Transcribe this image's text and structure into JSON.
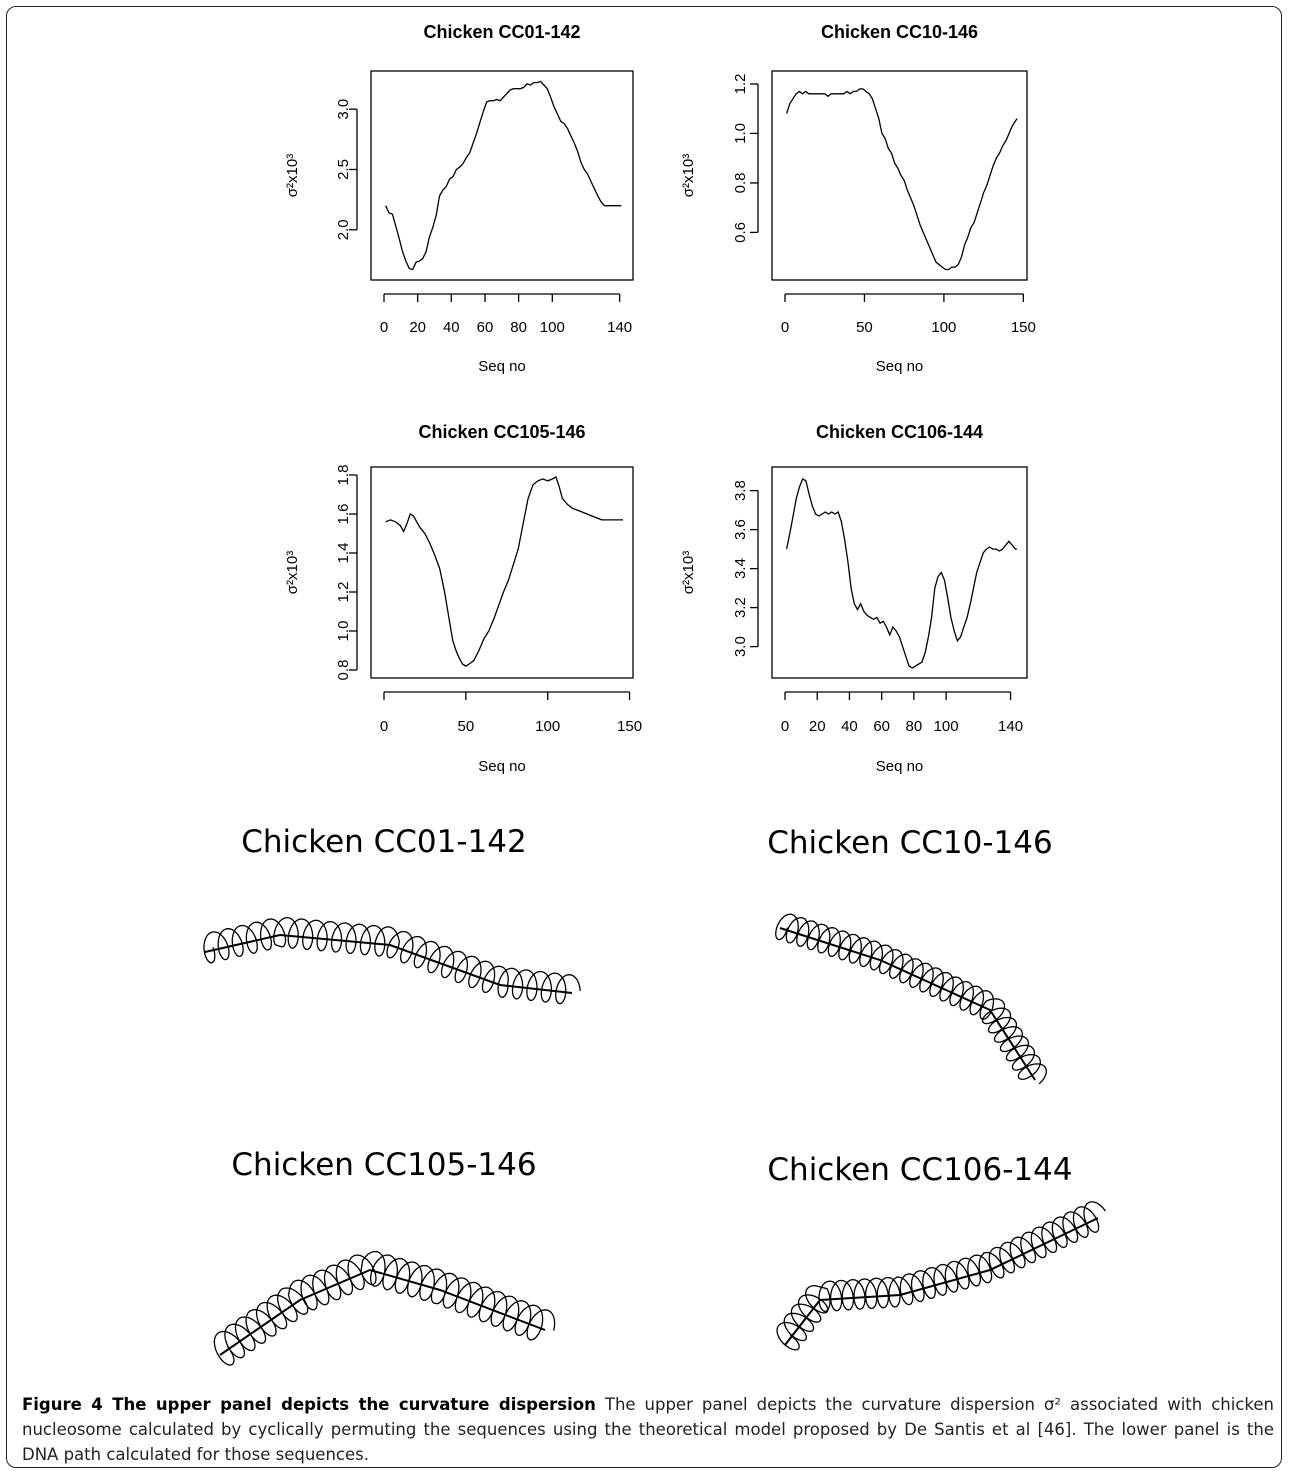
{
  "chart_data": [
    {
      "type": "line",
      "title": "Chicken  CC01-142",
      "xlabel": "Seq no",
      "ylabel": "σ²x10³",
      "xlim": [
        0,
        142
      ],
      "ylim": [
        1.65,
        3.25
      ],
      "xticks": [
        0,
        20,
        40,
        60,
        80,
        100,
        140
      ],
      "yticks": [
        2.0,
        2.5,
        3.0
      ],
      "ytick_labels": [
        "2.0",
        "2.5",
        "3.0"
      ],
      "x": [
        1,
        3,
        5,
        7,
        9,
        11,
        13,
        15,
        17,
        19,
        21,
        23,
        25,
        27,
        29,
        31,
        33,
        35,
        37,
        39,
        41,
        43,
        45,
        47,
        49,
        51,
        53,
        55,
        57,
        59,
        61,
        63,
        65,
        67,
        69,
        71,
        73,
        75,
        77,
        79,
        81,
        83,
        85,
        87,
        89,
        91,
        93,
        95,
        97,
        99,
        101,
        103,
        105,
        107,
        109,
        111,
        113,
        115,
        117,
        119,
        121,
        123,
        125,
        127,
        129,
        131,
        133,
        135,
        137,
        139,
        141
      ],
      "values": [
        2.2,
        2.14,
        2.13,
        2.03,
        1.93,
        1.82,
        1.74,
        1.68,
        1.67,
        1.73,
        1.74,
        1.76,
        1.82,
        1.94,
        2.02,
        2.12,
        2.28,
        2.33,
        2.36,
        2.42,
        2.44,
        2.5,
        2.52,
        2.55,
        2.6,
        2.64,
        2.72,
        2.8,
        2.89,
        2.98,
        3.06,
        3.07,
        3.07,
        3.08,
        3.07,
        3.1,
        3.13,
        3.16,
        3.17,
        3.17,
        3.17,
        3.18,
        3.21,
        3.2,
        3.22,
        3.22,
        3.23,
        3.2,
        3.17,
        3.1,
        3.02,
        2.96,
        2.9,
        2.88,
        2.84,
        2.78,
        2.72,
        2.65,
        2.56,
        2.5,
        2.46,
        2.4,
        2.34,
        2.28,
        2.23,
        2.2,
        2.2,
        2.2,
        2.2,
        2.2,
        2.2
      ]
    },
    {
      "type": "line",
      "title": "Chicken  CC10-146",
      "xlabel": "Seq no",
      "ylabel": "σ²x10³",
      "xlim": [
        0,
        146
      ],
      "ylim": [
        0.44,
        1.22
      ],
      "xticks": [
        0,
        50,
        100,
        150
      ],
      "yticks": [
        0.6,
        0.8,
        1.0,
        1.2
      ],
      "ytick_labels": [
        "0.6",
        "0.8",
        "1.0",
        "1.2"
      ],
      "x": [
        1,
        3,
        5,
        7,
        9,
        11,
        13,
        15,
        17,
        19,
        21,
        23,
        25,
        27,
        29,
        31,
        33,
        35,
        37,
        39,
        41,
        43,
        45,
        47,
        49,
        51,
        53,
        55,
        57,
        59,
        61,
        63,
        65,
        67,
        69,
        71,
        73,
        75,
        77,
        79,
        81,
        83,
        85,
        87,
        89,
        91,
        93,
        95,
        97,
        99,
        101,
        103,
        105,
        107,
        109,
        111,
        113,
        115,
        117,
        119,
        121,
        123,
        125,
        127,
        129,
        131,
        133,
        135,
        137,
        139,
        141,
        143,
        145,
        146
      ],
      "values": [
        1.08,
        1.12,
        1.14,
        1.16,
        1.17,
        1.16,
        1.17,
        1.16,
        1.16,
        1.16,
        1.16,
        1.16,
        1.16,
        1.15,
        1.16,
        1.16,
        1.16,
        1.16,
        1.16,
        1.17,
        1.16,
        1.17,
        1.17,
        1.18,
        1.18,
        1.17,
        1.16,
        1.14,
        1.1,
        1.06,
        1.0,
        0.98,
        0.94,
        0.92,
        0.88,
        0.86,
        0.83,
        0.81,
        0.77,
        0.74,
        0.71,
        0.67,
        0.63,
        0.6,
        0.57,
        0.54,
        0.51,
        0.48,
        0.47,
        0.46,
        0.45,
        0.45,
        0.46,
        0.46,
        0.47,
        0.5,
        0.55,
        0.58,
        0.62,
        0.64,
        0.68,
        0.72,
        0.76,
        0.79,
        0.83,
        0.87,
        0.9,
        0.92,
        0.95,
        0.97,
        1.0,
        1.03,
        1.05,
        1.06
      ]
    },
    {
      "type": "line",
      "title": "Chicken  CC105-146",
      "xlabel": "Seq no",
      "ylabel": "σ²x10³",
      "xlim": [
        0,
        146
      ],
      "ylim": [
        0.8,
        1.8
      ],
      "xticks": [
        0,
        50,
        100,
        150
      ],
      "yticks": [
        0.8,
        1.0,
        1.2,
        1.4,
        1.6,
        1.8
      ],
      "ytick_labels": [
        "0.8",
        "1.0",
        "1.2",
        "1.4",
        "1.6",
        "1.8"
      ],
      "x": [
        1,
        4,
        7,
        10,
        12,
        14,
        16,
        18,
        20,
        22,
        25,
        28,
        31,
        34,
        37,
        40,
        42,
        44,
        46,
        48,
        50,
        52,
        55,
        58,
        61,
        64,
        67,
        70,
        73,
        76,
        79,
        82,
        85,
        88,
        91,
        94,
        97,
        100,
        103,
        105,
        107,
        109,
        112,
        115,
        118,
        121,
        124,
        127,
        130,
        133,
        136,
        139,
        142,
        146
      ],
      "values": [
        1.56,
        1.57,
        1.56,
        1.54,
        1.51,
        1.55,
        1.6,
        1.59,
        1.56,
        1.53,
        1.5,
        1.45,
        1.39,
        1.32,
        1.2,
        1.05,
        0.95,
        0.9,
        0.86,
        0.83,
        0.82,
        0.83,
        0.85,
        0.9,
        0.96,
        1.0,
        1.06,
        1.13,
        1.2,
        1.26,
        1.34,
        1.42,
        1.55,
        1.68,
        1.75,
        1.77,
        1.78,
        1.77,
        1.78,
        1.79,
        1.74,
        1.68,
        1.65,
        1.63,
        1.62,
        1.61,
        1.6,
        1.59,
        1.58,
        1.57,
        1.57,
        1.57,
        1.57,
        1.57
      ]
    },
    {
      "type": "line",
      "title": "Chicken  CC106-144",
      "xlabel": "Seq no",
      "ylabel": "σ²x10³",
      "xlim": [
        0,
        144
      ],
      "ylim": [
        2.88,
        3.88
      ],
      "xticks": [
        0,
        20,
        40,
        60,
        80,
        100,
        140
      ],
      "yticks": [
        3.0,
        3.2,
        3.4,
        3.6,
        3.8
      ],
      "ytick_labels": [
        "3.0",
        "3.2",
        "3.4",
        "3.6",
        "3.8"
      ],
      "x": [
        1,
        3,
        5,
        7,
        9,
        11,
        13,
        15,
        17,
        19,
        21,
        23,
        25,
        27,
        29,
        31,
        33,
        35,
        37,
        39,
        41,
        43,
        45,
        47,
        49,
        51,
        53,
        55,
        57,
        59,
        61,
        63,
        65,
        67,
        69,
        71,
        73,
        75,
        77,
        79,
        81,
        83,
        85,
        87,
        89,
        91,
        93,
        95,
        97,
        99,
        101,
        103,
        105,
        107,
        109,
        111,
        113,
        115,
        117,
        119,
        121,
        123,
        125,
        127,
        129,
        131,
        133,
        135,
        137,
        139,
        141,
        143,
        144
      ],
      "values": [
        3.5,
        3.58,
        3.67,
        3.76,
        3.82,
        3.86,
        3.85,
        3.78,
        3.72,
        3.68,
        3.67,
        3.68,
        3.69,
        3.68,
        3.69,
        3.68,
        3.69,
        3.64,
        3.55,
        3.44,
        3.3,
        3.22,
        3.19,
        3.22,
        3.18,
        3.16,
        3.15,
        3.14,
        3.15,
        3.12,
        3.13,
        3.1,
        3.06,
        3.1,
        3.08,
        3.05,
        3.0,
        2.95,
        2.9,
        2.89,
        2.9,
        2.91,
        2.92,
        2.97,
        3.05,
        3.15,
        3.3,
        3.36,
        3.38,
        3.34,
        3.25,
        3.15,
        3.08,
        3.03,
        3.05,
        3.1,
        3.15,
        3.22,
        3.3,
        3.38,
        3.43,
        3.48,
        3.5,
        3.51,
        3.5,
        3.5,
        3.49,
        3.5,
        3.52,
        3.54,
        3.52,
        3.5,
        3.5
      ]
    }
  ],
  "dna_panels": [
    {
      "title": "Chicken CC01-142"
    },
    {
      "title": "Chicken CC10-146"
    },
    {
      "title": "Chicken CC105-146"
    },
    {
      "title": "Chicken CC106-144"
    }
  ],
  "caption": {
    "label": "Figure 4 The upper panel depicts the curvature dispersion",
    "text": "The upper panel depicts the curvature dispersion σ² associated with chicken nucleosome calculated by cyclically permuting the sequences using the theoretical model proposed by De Santis et al [46]. The lower panel is the DNA path calculated for those sequences."
  }
}
